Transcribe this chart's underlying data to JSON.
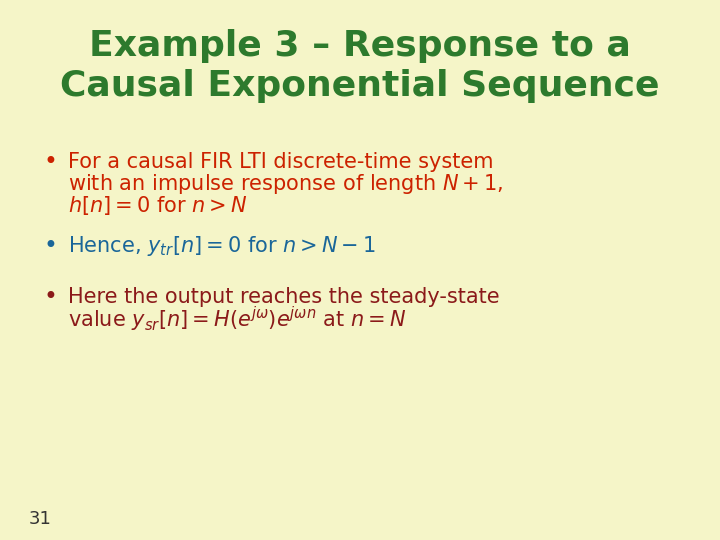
{
  "background_color": "#f5f5c8",
  "title_line1": "Example 3 – Response to a",
  "title_line2": "Causal Exponential Sequence",
  "title_color": "#2d7a2d",
  "title_fontsize": 26,
  "bullet1_color": "#cc2200",
  "bullet2_color": "#1a6699",
  "bullet3_color": "#8b1a1a",
  "bullet_fontsize": 15,
  "page_number": "31",
  "page_number_color": "#333333",
  "page_number_fontsize": 13
}
